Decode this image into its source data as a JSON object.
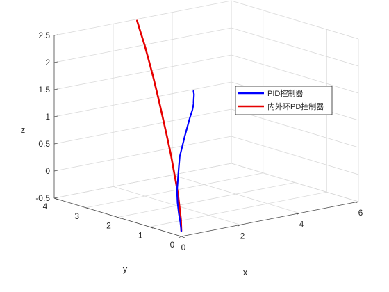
{
  "chart_data": {
    "type": "line3d",
    "title": "",
    "xlabel": "x",
    "ylabel": "y",
    "zlabel": "z",
    "xlim": [
      0,
      6
    ],
    "ylim": [
      0,
      4
    ],
    "zlim": [
      -0.5,
      2.5
    ],
    "xticks": [
      "0",
      "2",
      "4",
      "6"
    ],
    "yticks": [
      "0",
      "1",
      "2",
      "3",
      "4"
    ],
    "zticks": [
      "-0.5",
      "0",
      "0.5",
      "1",
      "1.5",
      "2",
      "2.5"
    ],
    "grid": true,
    "legend_position": "right",
    "series": [
      {
        "name": "PID控制器",
        "color": "#0000ff",
        "points": [
          [
            0.0,
            0.0,
            -0.4
          ],
          [
            0.02,
            0.05,
            -0.25
          ],
          [
            0.08,
            0.15,
            -0.12
          ],
          [
            0.25,
            0.35,
            0.03
          ],
          [
            0.5,
            0.6,
            0.18
          ],
          [
            0.8,
            0.85,
            0.32
          ],
          [
            1.1,
            1.1,
            0.46
          ],
          [
            1.4,
            1.35,
            0.58
          ],
          [
            1.7,
            1.55,
            0.7
          ],
          [
            2.0,
            1.75,
            0.82
          ],
          [
            2.3,
            1.95,
            0.92
          ],
          [
            2.6,
            2.15,
            1.02
          ],
          [
            2.85,
            2.3,
            1.12
          ],
          [
            3.0,
            2.4,
            1.2
          ],
          [
            3.05,
            2.44,
            1.3
          ],
          [
            3.02,
            2.42,
            1.22
          ],
          [
            3.1,
            2.48,
            1.35
          ],
          [
            3.06,
            2.46,
            1.42
          ]
        ]
      },
      {
        "name": "内外环PD控制器",
        "color": "#e60000",
        "points": [
          [
            0.0,
            0.0,
            -0.4
          ],
          [
            0.01,
            0.02,
            -0.2
          ],
          [
            0.05,
            0.1,
            0.0
          ],
          [
            0.12,
            0.22,
            0.25
          ],
          [
            0.2,
            0.4,
            0.55
          ],
          [
            0.3,
            0.6,
            0.85
          ],
          [
            0.42,
            0.84,
            1.15
          ],
          [
            0.55,
            1.1,
            1.45
          ],
          [
            0.68,
            1.36,
            1.75
          ],
          [
            0.82,
            1.64,
            2.05
          ],
          [
            0.95,
            1.9,
            2.3
          ],
          [
            1.08,
            2.15,
            2.52
          ],
          [
            1.2,
            2.4,
            2.72
          ],
          [
            1.3,
            2.6,
            2.88
          ]
        ]
      }
    ]
  }
}
